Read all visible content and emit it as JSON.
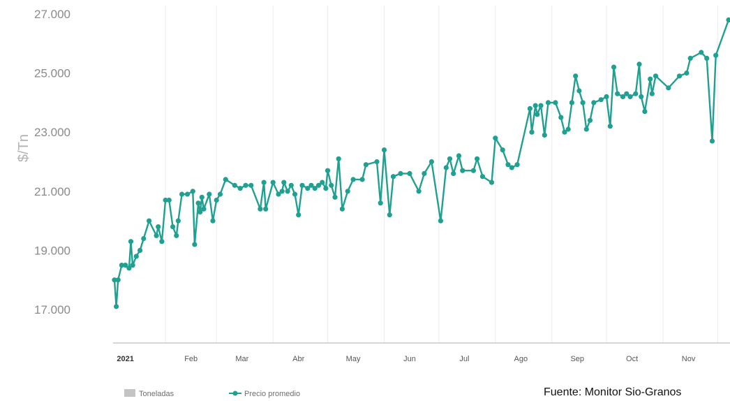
{
  "chart_data": {
    "type": "line",
    "ylabel": "$/Tn",
    "yticks": [
      "17.000",
      "19.000",
      "21.000",
      "23.000",
      "25.000",
      "27.000"
    ],
    "ylim": [
      16000,
      27500
    ],
    "xticks": [
      "2021",
      "Feb",
      "Mar",
      "Abr",
      "May",
      "Jun",
      "Jul",
      "Ago",
      "Sep",
      "Oct",
      "Nov"
    ],
    "grid": true,
    "legend": {
      "placement": "bottom-left",
      "entries": [
        "Toneladas",
        "Precio promedio"
      ]
    },
    "series": [
      {
        "name": "Precio promedio",
        "color": "#20a090",
        "points": [
          [
            "2021-01-04",
            18000
          ],
          [
            "2021-01-05",
            17100
          ],
          [
            "2021-01-06",
            18000
          ],
          [
            "2021-01-08",
            18500
          ],
          [
            "2021-01-10",
            18500
          ],
          [
            "2021-01-12",
            18400
          ],
          [
            "2021-01-13",
            19300
          ],
          [
            "2021-01-14",
            18500
          ],
          [
            "2021-01-16",
            18800
          ],
          [
            "2021-01-18",
            19000
          ],
          [
            "2021-01-20",
            19400
          ],
          [
            "2021-01-23",
            20000
          ],
          [
            "2021-01-27",
            19500
          ],
          [
            "2021-01-28",
            19800
          ],
          [
            "2021-01-30",
            19300
          ],
          [
            "2021-02-01",
            20700
          ],
          [
            "2021-02-03",
            20700
          ],
          [
            "2021-02-05",
            19800
          ],
          [
            "2021-02-07",
            19500
          ],
          [
            "2021-02-08",
            20000
          ],
          [
            "2021-02-10",
            20900
          ],
          [
            "2021-02-13",
            20900
          ],
          [
            "2021-02-16",
            21000
          ],
          [
            "2021-02-17",
            19200
          ],
          [
            "2021-02-19",
            20600
          ],
          [
            "2021-02-20",
            20300
          ],
          [
            "2021-02-21",
            20800
          ],
          [
            "2021-02-22",
            20400
          ],
          [
            "2021-02-25",
            20900
          ],
          [
            "2021-02-27",
            20000
          ],
          [
            "2021-03-01",
            20700
          ],
          [
            "2021-03-03",
            20900
          ],
          [
            "2021-03-06",
            21400
          ],
          [
            "2021-03-11",
            21200
          ],
          [
            "2021-03-14",
            21100
          ],
          [
            "2021-03-17",
            21200
          ],
          [
            "2021-03-20",
            21200
          ],
          [
            "2021-03-25",
            20400
          ],
          [
            "2021-03-27",
            21300
          ],
          [
            "2021-03-28",
            20400
          ],
          [
            "2021-04-01",
            21300
          ],
          [
            "2021-04-04",
            20900
          ],
          [
            "2021-04-06",
            21000
          ],
          [
            "2021-04-07",
            21300
          ],
          [
            "2021-04-09",
            21000
          ],
          [
            "2021-04-11",
            21200
          ],
          [
            "2021-04-13",
            20900
          ],
          [
            "2021-04-15",
            20200
          ],
          [
            "2021-04-17",
            21200
          ],
          [
            "2021-04-20",
            21100
          ],
          [
            "2021-04-22",
            21200
          ],
          [
            "2021-04-24",
            21100
          ],
          [
            "2021-04-26",
            21200
          ],
          [
            "2021-04-28",
            21300
          ],
          [
            "2021-04-30",
            21100
          ],
          [
            "2021-05-01",
            21700
          ],
          [
            "2021-05-03",
            21200
          ],
          [
            "2021-05-05",
            20800
          ],
          [
            "2021-05-07",
            22100
          ],
          [
            "2021-05-09",
            20400
          ],
          [
            "2021-05-12",
            21000
          ],
          [
            "2021-05-15",
            21400
          ],
          [
            "2021-05-20",
            21400
          ],
          [
            "2021-05-22",
            21900
          ],
          [
            "2021-05-28",
            22000
          ],
          [
            "2021-05-30",
            20600
          ],
          [
            "2021-06-01",
            22400
          ],
          [
            "2021-06-04",
            20200
          ],
          [
            "2021-06-06",
            21500
          ],
          [
            "2021-06-10",
            21600
          ],
          [
            "2021-06-15",
            21600
          ],
          [
            "2021-06-20",
            21000
          ],
          [
            "2021-06-23",
            21600
          ],
          [
            "2021-06-27",
            22000
          ],
          [
            "2021-07-02",
            20000
          ],
          [
            "2021-07-05",
            21800
          ],
          [
            "2021-07-07",
            22100
          ],
          [
            "2021-07-09",
            21600
          ],
          [
            "2021-07-12",
            22200
          ],
          [
            "2021-07-14",
            21700
          ],
          [
            "2021-07-20",
            21700
          ],
          [
            "2021-07-22",
            22100
          ],
          [
            "2021-07-25",
            21500
          ],
          [
            "2021-07-30",
            21300
          ],
          [
            "2021-08-01",
            22800
          ],
          [
            "2021-08-05",
            22400
          ],
          [
            "2021-08-08",
            21900
          ],
          [
            "2021-08-10",
            21800
          ],
          [
            "2021-08-13",
            21900
          ],
          [
            "2021-08-20",
            23800
          ],
          [
            "2021-08-21",
            23000
          ],
          [
            "2021-08-23",
            23900
          ],
          [
            "2021-08-24",
            23600
          ],
          [
            "2021-08-26",
            23900
          ],
          [
            "2021-08-28",
            22900
          ],
          [
            "2021-08-30",
            24000
          ],
          [
            "2021-09-03",
            24000
          ],
          [
            "2021-09-06",
            23500
          ],
          [
            "2021-09-08",
            23000
          ],
          [
            "2021-09-10",
            23100
          ],
          [
            "2021-09-12",
            24000
          ],
          [
            "2021-09-14",
            24900
          ],
          [
            "2021-09-16",
            24400
          ],
          [
            "2021-09-18",
            24000
          ],
          [
            "2021-09-20",
            23100
          ],
          [
            "2021-09-22",
            23400
          ],
          [
            "2021-09-24",
            24000
          ],
          [
            "2021-09-28",
            24100
          ],
          [
            "2021-10-01",
            24200
          ],
          [
            "2021-10-03",
            23200
          ],
          [
            "2021-10-05",
            25200
          ],
          [
            "2021-10-07",
            24300
          ],
          [
            "2021-10-10",
            24200
          ],
          [
            "2021-10-12",
            24300
          ],
          [
            "2021-10-14",
            24200
          ],
          [
            "2021-10-17",
            24300
          ],
          [
            "2021-10-19",
            25300
          ],
          [
            "2021-10-20",
            24200
          ],
          [
            "2021-10-22",
            23700
          ],
          [
            "2021-10-25",
            24800
          ],
          [
            "2021-10-26",
            24300
          ],
          [
            "2021-10-28",
            24900
          ],
          [
            "2021-11-04",
            24500
          ],
          [
            "2021-11-10",
            24900
          ],
          [
            "2021-11-14",
            25000
          ],
          [
            "2021-11-16",
            25500
          ],
          [
            "2021-11-22",
            25700
          ],
          [
            "2021-11-25",
            25500
          ],
          [
            "2021-11-28",
            22700
          ],
          [
            "2021-11-30",
            25600
          ],
          [
            "2021-12-07",
            26800
          ]
        ]
      }
    ]
  },
  "legend": {
    "toneladas_label": "Toneladas",
    "precio_label": "Precio promedio",
    "toneladas_color": "#c4c4c4",
    "precio_color": "#20a090"
  },
  "source": "Fuente: Monitor Sio-Granos"
}
